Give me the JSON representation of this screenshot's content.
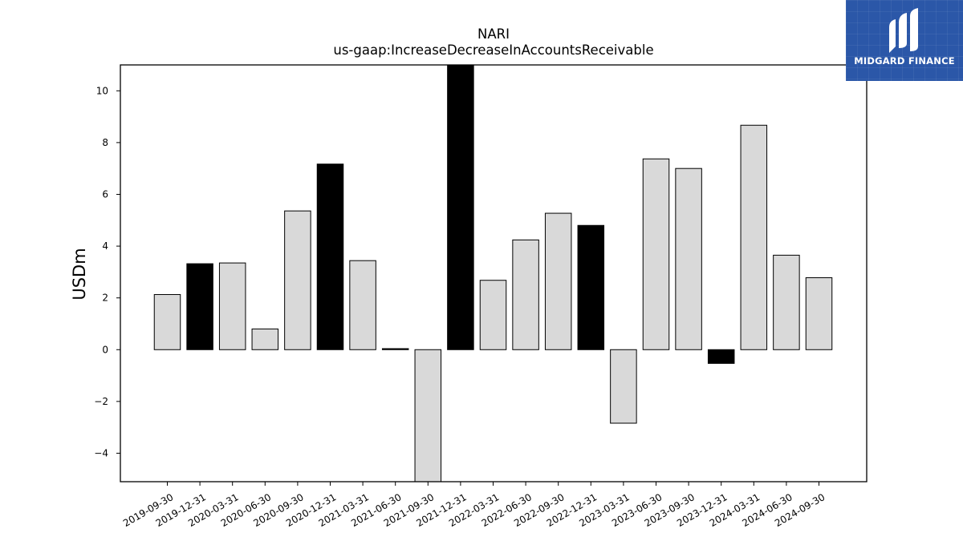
{
  "logo": {
    "text": "MIDGARD FINANCE",
    "background": "#2b57a8"
  },
  "chart_data": {
    "type": "bar",
    "title": "NARI",
    "subtitle": "us-gaap:IncreaseDecreaseInAccountsReceivable",
    "xlabel": "",
    "ylabel": "USDm",
    "ylim": [
      -5.1,
      11.0
    ],
    "yticks": [
      -4,
      -2,
      0,
      2,
      4,
      6,
      8,
      10
    ],
    "grid": false,
    "categories": [
      "2019-09-30",
      "2019-12-31",
      "2020-03-31",
      "2020-06-30",
      "2020-09-30",
      "2020-12-31",
      "2021-03-31",
      "2021-06-30",
      "2021-09-30",
      "2021-12-31",
      "2022-03-31",
      "2022-06-30",
      "2022-09-30",
      "2022-12-31",
      "2023-03-31",
      "2023-06-30",
      "2023-09-30",
      "2023-12-31",
      "2024-03-31",
      "2024-06-30",
      "2024-09-30"
    ],
    "values": [
      2.13,
      3.32,
      3.35,
      0.8,
      5.36,
      7.17,
      3.44,
      0.04,
      -5.2,
      11.0,
      2.68,
      4.24,
      5.27,
      4.8,
      -2.84,
      7.37,
      7.0,
      -0.53,
      8.67,
      3.65,
      2.78
    ],
    "quarter_end": [
      false,
      true,
      false,
      false,
      false,
      true,
      false,
      true,
      false,
      true,
      false,
      false,
      false,
      true,
      false,
      false,
      false,
      true,
      false,
      false,
      false
    ],
    "colors": {
      "regular": "#d9d9d9",
      "year_end": "#000000",
      "edge": "#000000"
    }
  }
}
